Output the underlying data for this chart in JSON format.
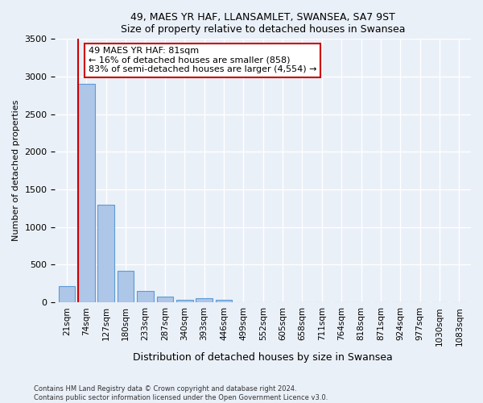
{
  "title1": "49, MAES YR HAF, LLANSAMLET, SWANSEA, SA7 9ST",
  "title2": "Size of property relative to detached houses in Swansea",
  "xlabel": "Distribution of detached houses by size in Swansea",
  "ylabel": "Number of detached properties",
  "categories": [
    "21sqm",
    "74sqm",
    "127sqm",
    "180sqm",
    "233sqm",
    "287sqm",
    "340sqm",
    "393sqm",
    "446sqm",
    "499sqm",
    "552sqm",
    "605sqm",
    "658sqm",
    "711sqm",
    "764sqm",
    "818sqm",
    "871sqm",
    "924sqm",
    "977sqm",
    "1030sqm",
    "1083sqm"
  ],
  "values": [
    220,
    2900,
    1300,
    420,
    155,
    75,
    30,
    55,
    30,
    0,
    0,
    0,
    0,
    0,
    0,
    0,
    0,
    0,
    0,
    0,
    0
  ],
  "bar_color": "#aec6e8",
  "bar_edge_color": "#5b9bd5",
  "red_line_x": 1,
  "annotation_line_color": "#cc0000",
  "annotation_box_text": "49 MAES YR HAF: 81sqm\n← 16% of detached houses are smaller (858)\n83% of semi-detached houses are larger (4,554) →",
  "ylim": [
    0,
    3500
  ],
  "yticks": [
    0,
    500,
    1000,
    1500,
    2000,
    2500,
    3000,
    3500
  ],
  "background_color": "#eaf0f8",
  "grid_color": "#ffffff",
  "footer_line1": "Contains HM Land Registry data © Crown copyright and database right 2024.",
  "footer_line2": "Contains public sector information licensed under the Open Government Licence v3.0."
}
